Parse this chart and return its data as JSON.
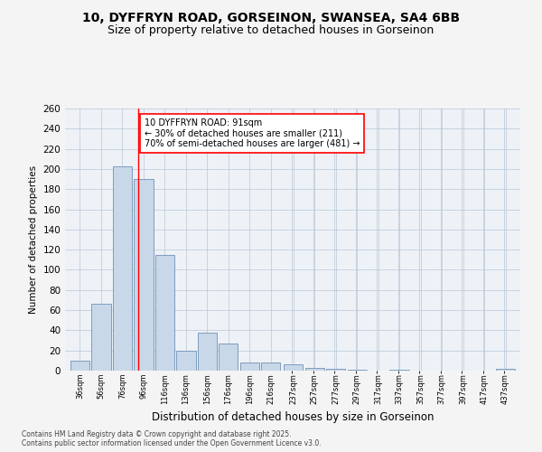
{
  "title1": "10, DYFFRYN ROAD, GORSEINON, SWANSEA, SA4 6BB",
  "title2": "Size of property relative to detached houses in Gorseinon",
  "xlabel": "Distribution of detached houses by size in Gorseinon",
  "ylabel": "Number of detached properties",
  "bar_color": "#c8d8e8",
  "bar_edge_color": "#7090b8",
  "bins": [
    36,
    56,
    76,
    96,
    116,
    136,
    156,
    176,
    196,
    216,
    237,
    257,
    277,
    297,
    317,
    337,
    357,
    377,
    397,
    417,
    437
  ],
  "values": [
    10,
    66,
    203,
    190,
    115,
    20,
    38,
    27,
    8,
    8,
    6,
    3,
    2,
    1,
    0,
    1,
    0,
    0,
    0,
    0,
    2
  ],
  "tick_labels": [
    "36sqm",
    "56sqm",
    "76sqm",
    "96sqm",
    "116sqm",
    "136sqm",
    "156sqm",
    "176sqm",
    "196sqm",
    "216sqm",
    "237sqm",
    "257sqm",
    "277sqm",
    "297sqm",
    "317sqm",
    "337sqm",
    "357sqm",
    "377sqm",
    "397sqm",
    "417sqm",
    "437sqm"
  ],
  "ylim": [
    0,
    260
  ],
  "yticks": [
    0,
    20,
    40,
    60,
    80,
    100,
    120,
    140,
    160,
    180,
    200,
    220,
    240,
    260
  ],
  "red_line_x": 91,
  "annotation_text": "10 DYFFRYN ROAD: 91sqm\n← 30% of detached houses are smaller (211)\n70% of semi-detached houses are larger (481) →",
  "footer": "Contains HM Land Registry data © Crown copyright and database right 2025.\nContains public sector information licensed under the Open Government Licence v3.0.",
  "bg_color": "#eef2f7",
  "grid_color": "#b8c8d8",
  "fig_bg": "#f4f4f4"
}
